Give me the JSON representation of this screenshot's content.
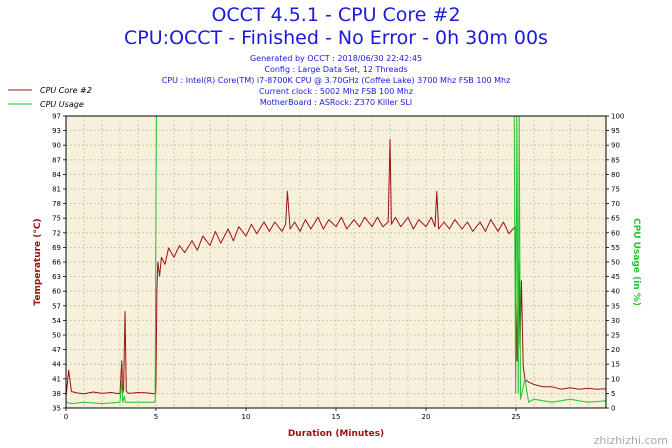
{
  "header": {
    "title": "OCCT 4.5.1 - CPU Core #2",
    "subtitle": "CPU:OCCT - Finished - No Error - 0h 30m 00s",
    "info": [
      "Generated by OCCT : 2018/06/30 22:42:45",
      "Config : Large Data Set, 12 Threads",
      "CPU : Intel(R) Core(TM) i7-8700K CPU @ 3.70GHz (Coffee Lake) 3700 Mhz FSB 100 Mhz",
      "Current clock : 5002 Mhz FSB 100 Mhz",
      "MotherBoard : ASRock: Z370 Killer SLI"
    ]
  },
  "watermark": "zhizhizhi.com",
  "chart_data": {
    "type": "line",
    "xlabel": "Duration (Minutes)",
    "ylabel": "Temperature (°C)",
    "ylabel_right": "CPU Usage (in %)",
    "xlim": [
      0,
      30
    ],
    "ylim": [
      35,
      97
    ],
    "ylim_right": [
      0,
      100
    ],
    "x_ticks": [
      0,
      5,
      10,
      15,
      20,
      25
    ],
    "y_ticks": [
      35,
      38,
      41,
      44,
      47,
      50,
      54,
      57,
      60,
      63,
      66,
      69,
      72,
      75,
      78,
      81,
      84,
      87,
      90,
      93,
      97
    ],
    "y_ticks_right": [
      0,
      5,
      10,
      15,
      20,
      25,
      30,
      35,
      40,
      45,
      50,
      55,
      60,
      65,
      70,
      75,
      80,
      85,
      90,
      95,
      100
    ],
    "grid": true,
    "legend_position": "top-left",
    "background_color": "#f6f0dc",
    "grid_color": "#c9c29d",
    "series": [
      {
        "name": "CPU Core #2",
        "axis": "left",
        "color": "#a01010",
        "points": [
          [
            0.0,
            37.5
          ],
          [
            0.15,
            43.0
          ],
          [
            0.3,
            38.5
          ],
          [
            0.6,
            38.2
          ],
          [
            1.0,
            38.0
          ],
          [
            1.5,
            38.4
          ],
          [
            2.0,
            38.1
          ],
          [
            2.5,
            38.3
          ],
          [
            3.0,
            38.0
          ],
          [
            3.1,
            45.0
          ],
          [
            3.15,
            38.2
          ],
          [
            3.2,
            39.0
          ],
          [
            3.28,
            55.5
          ],
          [
            3.35,
            38.5
          ],
          [
            3.5,
            38.1
          ],
          [
            4.0,
            38.3
          ],
          [
            4.5,
            38.2
          ],
          [
            4.98,
            38.0
          ],
          [
            5.0,
            41.0
          ],
          [
            5.05,
            60.0
          ],
          [
            5.1,
            66.0
          ],
          [
            5.2,
            63.0
          ],
          [
            5.3,
            67.0
          ],
          [
            5.5,
            65.5
          ],
          [
            5.7,
            69.0
          ],
          [
            6.0,
            67.0
          ],
          [
            6.3,
            69.5
          ],
          [
            6.6,
            68.0
          ],
          [
            7.0,
            70.5
          ],
          [
            7.3,
            68.5
          ],
          [
            7.6,
            71.5
          ],
          [
            8.0,
            69.5
          ],
          [
            8.3,
            72.5
          ],
          [
            8.6,
            70.0
          ],
          [
            9.0,
            73.0
          ],
          [
            9.3,
            70.5
          ],
          [
            9.6,
            73.5
          ],
          [
            10.0,
            71.5
          ],
          [
            10.3,
            74.0
          ],
          [
            10.6,
            72.0
          ],
          [
            11.0,
            74.5
          ],
          [
            11.3,
            72.5
          ],
          [
            11.6,
            74.5
          ],
          [
            12.0,
            72.5
          ],
          [
            12.2,
            74.0
          ],
          [
            12.3,
            81.0
          ],
          [
            12.45,
            73.0
          ],
          [
            12.7,
            74.5
          ],
          [
            13.0,
            72.5
          ],
          [
            13.3,
            75.0
          ],
          [
            13.6,
            73.0
          ],
          [
            14.0,
            75.5
          ],
          [
            14.3,
            73.0
          ],
          [
            14.6,
            75.0
          ],
          [
            15.0,
            73.5
          ],
          [
            15.3,
            75.5
          ],
          [
            15.6,
            73.0
          ],
          [
            16.0,
            75.0
          ],
          [
            16.3,
            73.5
          ],
          [
            16.6,
            75.5
          ],
          [
            17.0,
            73.5
          ],
          [
            17.3,
            75.5
          ],
          [
            17.6,
            73.5
          ],
          [
            17.9,
            74.5
          ],
          [
            18.0,
            92.0
          ],
          [
            18.08,
            74.0
          ],
          [
            18.3,
            75.5
          ],
          [
            18.6,
            73.5
          ],
          [
            19.0,
            75.5
          ],
          [
            19.3,
            73.0
          ],
          [
            19.6,
            75.0
          ],
          [
            20.0,
            73.5
          ],
          [
            20.3,
            75.5
          ],
          [
            20.5,
            73.5
          ],
          [
            20.6,
            81.0
          ],
          [
            20.7,
            73.0
          ],
          [
            21.0,
            74.5
          ],
          [
            21.3,
            73.0
          ],
          [
            21.6,
            75.0
          ],
          [
            22.0,
            73.0
          ],
          [
            22.3,
            74.5
          ],
          [
            22.6,
            72.5
          ],
          [
            23.0,
            74.5
          ],
          [
            23.3,
            72.5
          ],
          [
            23.6,
            75.0
          ],
          [
            24.0,
            72.5
          ],
          [
            24.3,
            74.5
          ],
          [
            24.6,
            72.0
          ],
          [
            24.95,
            73.5
          ],
          [
            25.05,
            45.0
          ],
          [
            25.15,
            66.0
          ],
          [
            25.22,
            48.0
          ],
          [
            25.3,
            62.0
          ],
          [
            25.4,
            44.0
          ],
          [
            25.5,
            41.0
          ],
          [
            25.7,
            40.5
          ],
          [
            26.0,
            40.0
          ],
          [
            26.5,
            39.5
          ],
          [
            27.0,
            39.5
          ],
          [
            27.5,
            39.0
          ],
          [
            28.0,
            39.3
          ],
          [
            28.5,
            39.0
          ],
          [
            29.0,
            39.2
          ],
          [
            29.5,
            39.0
          ],
          [
            30.0,
            39.1
          ]
        ]
      },
      {
        "name": "CPU Usage",
        "axis": "right",
        "color": "#22c42e",
        "points": [
          [
            0.0,
            2.0
          ],
          [
            0.3,
            1.5
          ],
          [
            1.0,
            2.0
          ],
          [
            2.0,
            1.5
          ],
          [
            3.0,
            2.0
          ],
          [
            3.1,
            10.0
          ],
          [
            3.15,
            2.0
          ],
          [
            3.25,
            4.0
          ],
          [
            3.3,
            2.0
          ],
          [
            4.0,
            2.0
          ],
          [
            4.95,
            2.0
          ],
          [
            5.02,
            100.0
          ],
          [
            24.9,
            100.0
          ],
          [
            24.98,
            5.0
          ],
          [
            25.05,
            100.0
          ],
          [
            25.12,
            5.0
          ],
          [
            25.18,
            100.0
          ],
          [
            25.25,
            3.0
          ],
          [
            25.5,
            10.0
          ],
          [
            25.7,
            2.0
          ],
          [
            26.0,
            3.0
          ],
          [
            27.0,
            2.0
          ],
          [
            28.0,
            3.0
          ],
          [
            29.0,
            2.0
          ],
          [
            30.0,
            2.5
          ]
        ]
      }
    ]
  }
}
